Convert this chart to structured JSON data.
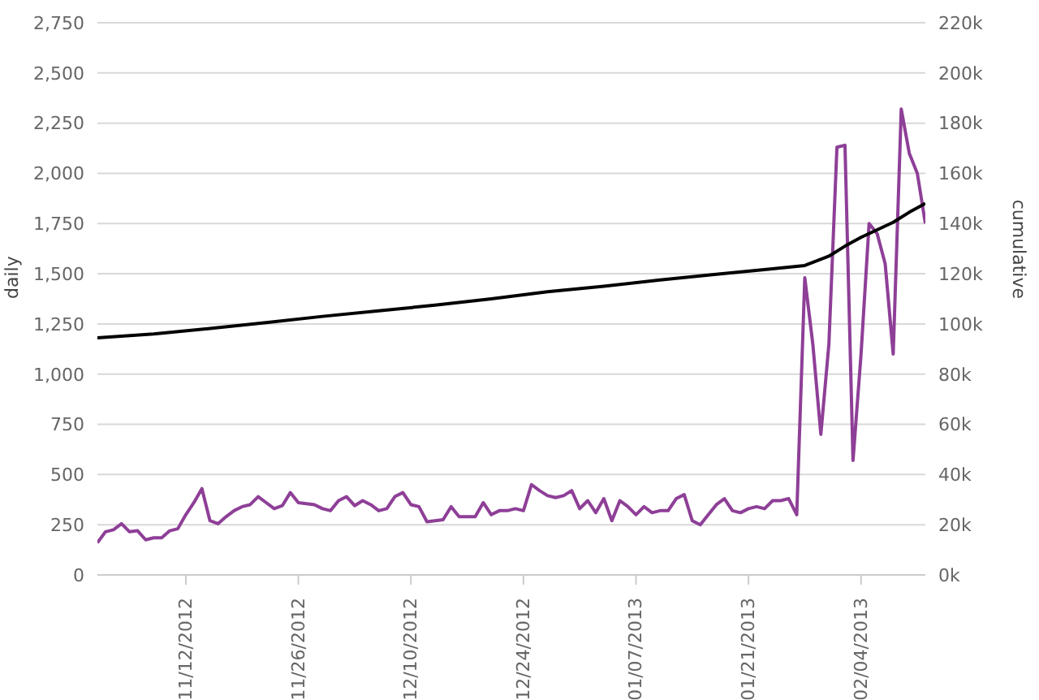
{
  "chart_data": {
    "type": "line",
    "ylabel": "daily",
    "y2label": "cumulative",
    "xlim": [
      "2012-11-01",
      "2013-02-12"
    ],
    "xticks": [
      {
        "value": "2012-11-12",
        "label": "11/12/2012"
      },
      {
        "value": "2012-11-26",
        "label": "11/26/2012"
      },
      {
        "value": "2012-12-10",
        "label": "12/10/2012"
      },
      {
        "value": "2012-12-24",
        "label": "12/24/2012"
      },
      {
        "value": "2013-01-07",
        "label": "01/07/2013"
      },
      {
        "value": "2013-01-21",
        "label": "01/21/2013"
      },
      {
        "value": "2013-02-04",
        "label": "02/04/2013"
      }
    ],
    "ylim": [
      0,
      2750
    ],
    "yticks": [
      0,
      250,
      500,
      750,
      {
        "value": 1000,
        "label": "1,000"
      },
      {
        "value": 1250,
        "label": "1,250"
      },
      {
        "value": 1500,
        "label": "1,500"
      },
      {
        "value": 1750,
        "label": "1,750"
      },
      {
        "value": 2000,
        "label": "2,000"
      },
      {
        "value": 2250,
        "label": "2,250"
      },
      {
        "value": 2500,
        "label": "2,500"
      },
      {
        "value": 2750,
        "label": "2,750"
      }
    ],
    "y2lim": [
      0,
      220000
    ],
    "y2ticks": [
      {
        "value": 0,
        "label": "0k"
      },
      {
        "value": 20000,
        "label": "20k"
      },
      {
        "value": 40000,
        "label": "40k"
      },
      {
        "value": 60000,
        "label": "60k"
      },
      {
        "value": 80000,
        "label": "80k"
      },
      {
        "value": 100000,
        "label": "100k"
      },
      {
        "value": 120000,
        "label": "120k"
      },
      {
        "value": 140000,
        "label": "140k"
      },
      {
        "value": 160000,
        "label": "160k"
      },
      {
        "value": 180000,
        "label": "180k"
      },
      {
        "value": 200000,
        "label": "200k"
      },
      {
        "value": 220000,
        "label": "220k"
      }
    ],
    "grid": "y",
    "legend": false,
    "marker": "none",
    "line_style": "solid",
    "series": [
      {
        "color": "#8e3f97",
        "x": [
          "2012-11-01",
          "2012-11-02",
          "2012-11-03",
          "2012-11-04",
          "2012-11-05",
          "2012-11-06",
          "2012-11-07",
          "2012-11-08",
          "2012-11-09",
          "2012-11-10",
          "2012-11-11",
          "2012-11-12",
          "2012-11-13",
          "2012-11-14",
          "2012-11-15",
          "2012-11-16",
          "2012-11-17",
          "2012-11-18",
          "2012-11-19",
          "2012-11-20",
          "2012-11-21",
          "2012-11-22",
          "2012-11-23",
          "2012-11-24",
          "2012-11-25",
          "2012-11-26",
          "2012-11-27",
          "2012-11-28",
          "2012-11-29",
          "2012-11-30",
          "2012-12-01",
          "2012-12-02",
          "2012-12-03",
          "2012-12-04",
          "2012-12-05",
          "2012-12-06",
          "2012-12-07",
          "2012-12-08",
          "2012-12-09",
          "2012-12-10",
          "2012-12-11",
          "2012-12-12",
          "2012-12-13",
          "2012-12-14",
          "2012-12-15",
          "2012-12-16",
          "2012-12-17",
          "2012-12-18",
          "2012-12-19",
          "2012-12-20",
          "2012-12-21",
          "2012-12-22",
          "2012-12-23",
          "2012-12-24",
          "2012-12-25",
          "2012-12-26",
          "2012-12-27",
          "2012-12-28",
          "2012-12-29",
          "2012-12-30",
          "2012-12-31",
          "2013-01-01",
          "2013-01-02",
          "2013-01-03",
          "2013-01-04",
          "2013-01-05",
          "2013-01-06",
          "2013-01-07",
          "2013-01-08",
          "2013-01-09",
          "2013-01-10",
          "2013-01-11",
          "2013-01-12",
          "2013-01-13",
          "2013-01-14",
          "2013-01-15",
          "2013-01-16",
          "2013-01-17",
          "2013-01-18",
          "2013-01-19",
          "2013-01-20",
          "2013-01-21",
          "2013-01-22",
          "2013-01-23",
          "2013-01-24",
          "2013-01-25",
          "2013-01-26",
          "2013-01-27",
          "2013-01-28",
          "2013-01-29",
          "2013-01-30",
          "2013-01-31",
          "2013-02-01",
          "2013-02-02",
          "2013-02-03",
          "2013-02-04",
          "2013-02-05",
          "2013-02-06",
          "2013-02-07",
          "2013-02-08",
          "2013-02-09",
          "2013-02-10",
          "2013-02-11",
          "2013-02-12"
        ],
        "values": [
          160,
          215,
          225,
          255,
          215,
          220,
          175,
          185,
          185,
          220,
          230,
          300,
          360,
          430,
          270,
          255,
          290,
          320,
          340,
          350,
          390,
          360,
          330,
          345,
          410,
          360,
          355,
          350,
          330,
          320,
          370,
          390,
          345,
          370,
          350,
          320,
          330,
          390,
          410,
          350,
          340,
          265,
          270,
          275,
          340,
          290,
          290,
          290,
          360,
          300,
          320,
          320,
          330,
          320,
          450,
          420,
          395,
          385,
          395,
          420,
          330,
          370,
          310,
          380,
          270,
          370,
          340,
          300,
          340,
          310,
          320,
          320,
          380,
          400,
          270,
          250,
          300,
          350,
          380,
          320,
          310,
          330,
          340,
          330,
          370,
          370,
          380,
          300,
          1480,
          1150,
          700,
          1150,
          2130,
          2140,
          570,
          1100,
          1750,
          1700,
          1550,
          1100,
          2320,
          2100,
          2000,
          1750
        ]
      },
      {
        "axis": "y2",
        "color": "#000000",
        "x": [
          "2012-11-01",
          "2012-11-08",
          "2012-11-15",
          "2012-11-22",
          "2012-11-29",
          "2012-12-06",
          "2012-12-13",
          "2012-12-20",
          "2012-12-27",
          "2013-01-03",
          "2013-01-10",
          "2013-01-17",
          "2013-01-24",
          "2013-01-28",
          "2013-01-31",
          "2013-02-02",
          "2013-02-04",
          "2013-02-06",
          "2013-02-08",
          "2013-02-10",
          "2013-02-12"
        ],
        "values": [
          94500,
          96000,
          98200,
          100500,
          103000,
          105200,
          107500,
          110000,
          112800,
          115000,
          117500,
          119800,
          122000,
          123300,
          127000,
          131000,
          134500,
          137500,
          140500,
          144500,
          148000
        ]
      }
    ]
  }
}
